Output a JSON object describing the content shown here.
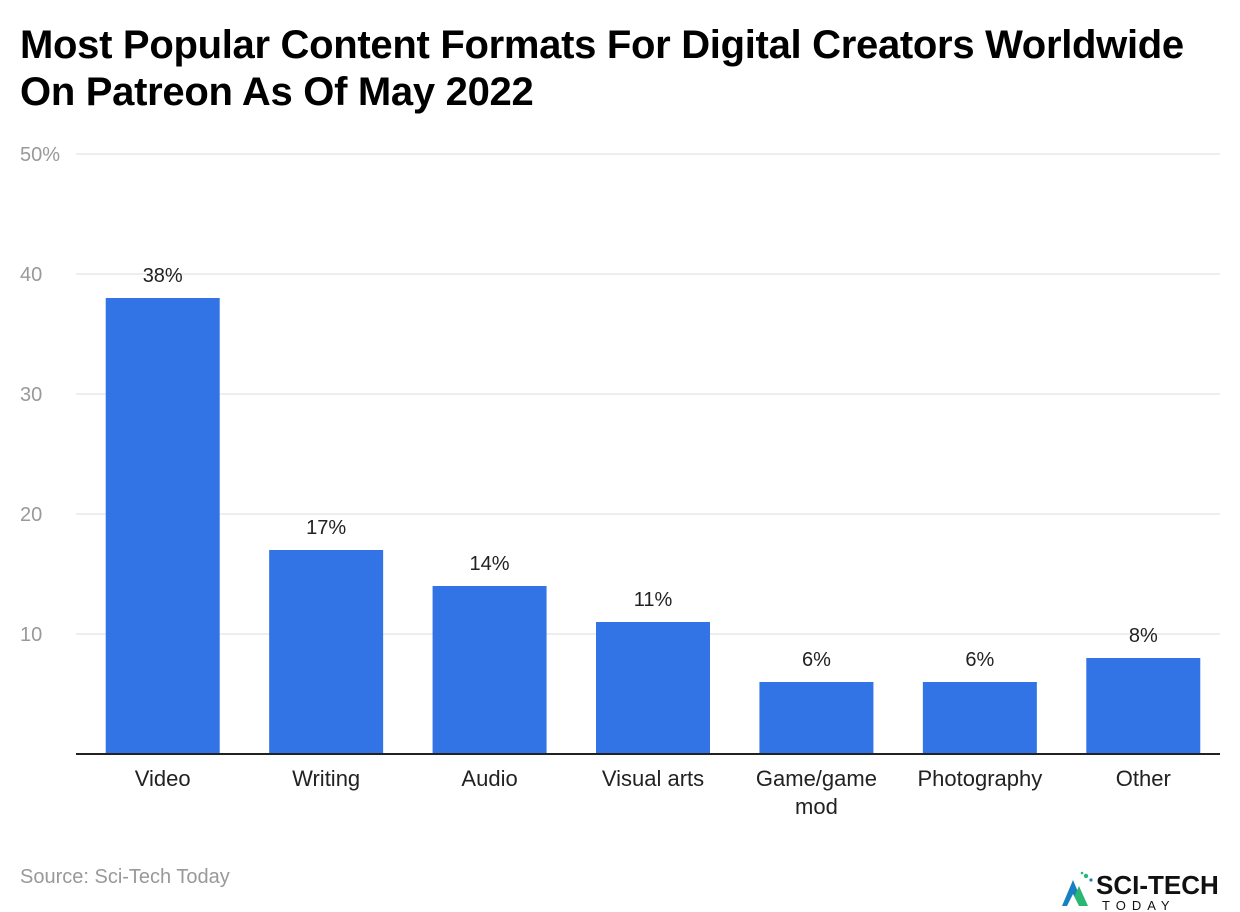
{
  "title": "Most Popular Content Formats For Digital Creators Worldwide On Patreon As Of May 2022",
  "source": "Source: Sci-Tech Today",
  "logo": {
    "name": "SCI-TECH",
    "sub": "TODAY"
  },
  "colors": {
    "bar": "#3274E6",
    "grid": "#DDDDDD",
    "axis": "#222222"
  },
  "chart_data": {
    "type": "bar",
    "categories": [
      "Video",
      "Writing",
      "Audio",
      "Visual arts",
      "Game/game mod",
      "Photography",
      "Other"
    ],
    "category_lines": [
      [
        "Video"
      ],
      [
        "Writing"
      ],
      [
        "Audio"
      ],
      [
        "Visual arts"
      ],
      [
        "Game/game",
        "mod"
      ],
      [
        "Photography"
      ],
      [
        "Other"
      ]
    ],
    "values": [
      38,
      17,
      14,
      11,
      6,
      6,
      8
    ],
    "value_labels": [
      "38%",
      "17%",
      "14%",
      "11%",
      "6%",
      "6%",
      "8%"
    ],
    "yticks": [
      10,
      20,
      30,
      40,
      50
    ],
    "ytick_labels": [
      "10",
      "20",
      "30",
      "40",
      "50%"
    ],
    "ylim": [
      0,
      50
    ],
    "grid": true,
    "title": "Most Popular Content Formats For Digital Creators Worldwide On Patreon As Of May 2022",
    "xlabel": "",
    "ylabel": ""
  }
}
